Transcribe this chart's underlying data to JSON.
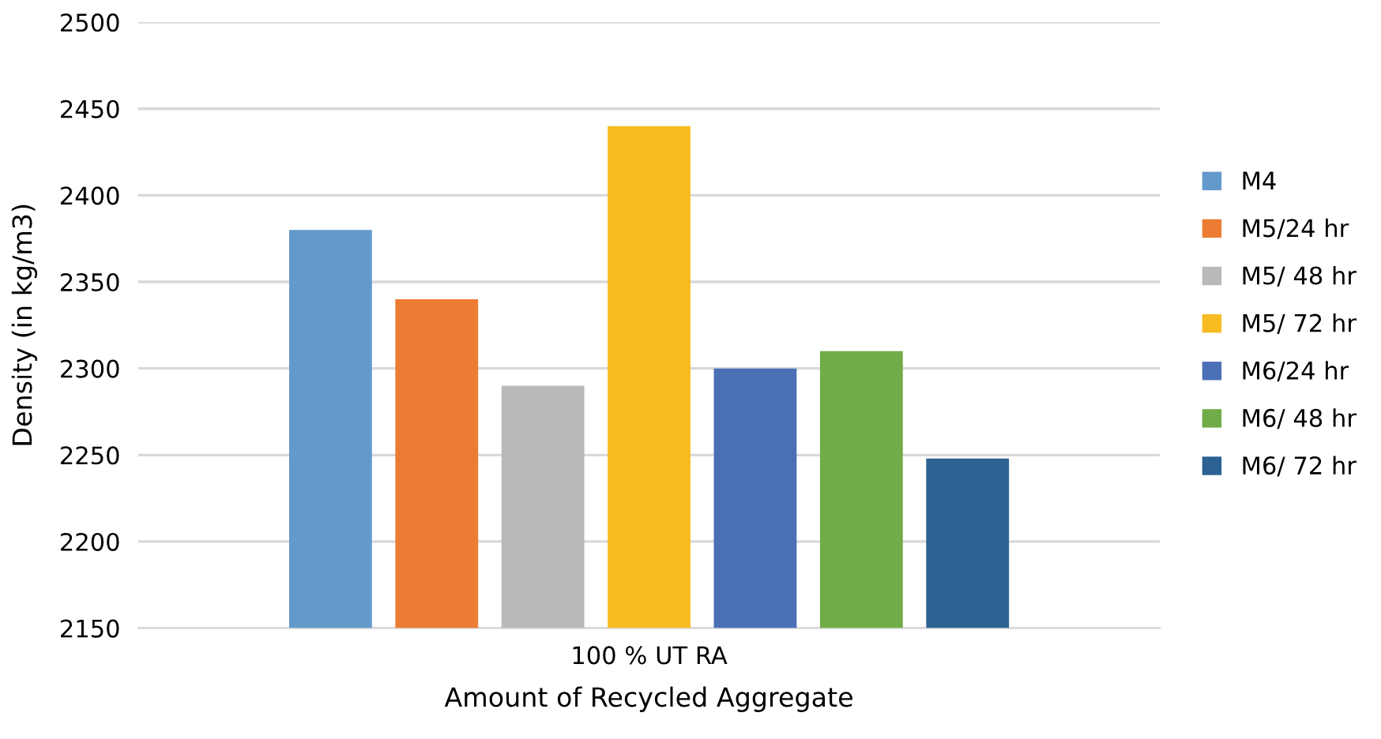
{
  "chart_data": {
    "type": "bar",
    "xlabel": "Amount of Recycled Aggregate",
    "ylabel": "Density (in kg/m3)",
    "categories": [
      "100 % UT RA"
    ],
    "series": [
      {
        "name": "M4",
        "color": "#6499cc",
        "values": [
          2380
        ]
      },
      {
        "name": "M5/24 hr",
        "color": "#ec7c34",
        "values": [
          2340
        ]
      },
      {
        "name": "M5/ 48 hr",
        "color": "#b8b9b8",
        "values": [
          2290
        ]
      },
      {
        "name": "M5/ 72 hr",
        "color": "#f7bc22",
        "values": [
          2440
        ]
      },
      {
        "name": "M6/24 hr",
        "color": "#4a6fb5",
        "values": [
          2300
        ]
      },
      {
        "name": "M6/ 48 hr",
        "color": "#70ac47",
        "values": [
          2310
        ]
      },
      {
        "name": "M6/ 72 hr",
        "color": "#2c6193",
        "values": [
          2248
        ]
      }
    ],
    "ylim": [
      2150,
      2500
    ],
    "yticks": [
      2150,
      2200,
      2250,
      2300,
      2350,
      2400,
      2450,
      2500
    ],
    "grid": "y",
    "legend": "right"
  }
}
